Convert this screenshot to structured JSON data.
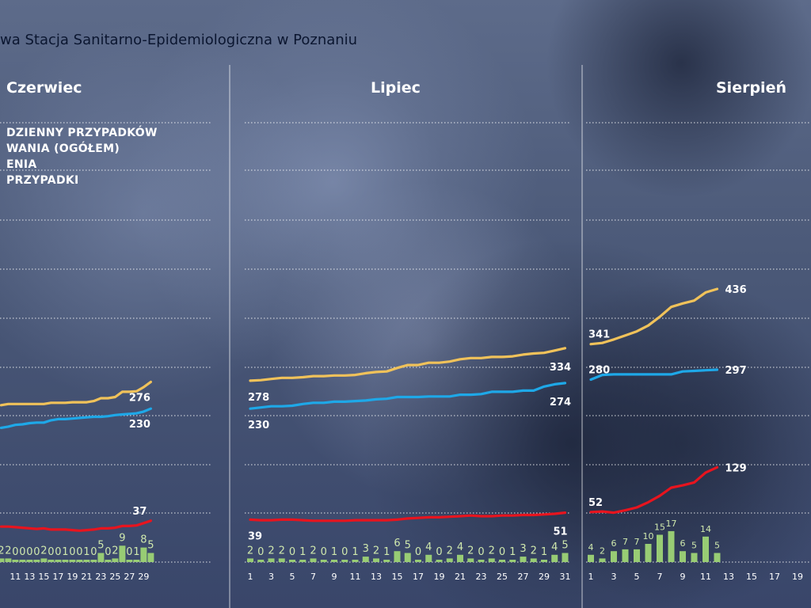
{
  "header": {
    "title": "wa Stacja Sanitarno-Epidemiologiczna w Poznaniu"
  },
  "legend": {
    "entries": [
      "DZIENNY PRZYPADKÓW",
      "WANIA (OGÓŁEM)",
      "ENIA",
      "PRZYPADKI"
    ]
  },
  "colors": {
    "total": "#f0c25a",
    "active": "#1ea8e8",
    "recovered": "#e8141e",
    "daily": "#98cc74",
    "bar_label": "#cfe8ad",
    "label": "#ffffff",
    "gridline": "#ffffff"
  },
  "chart_data": [
    {
      "type": "line",
      "title": "Czerwiec",
      "x_tick_labels": [
        "11",
        "13",
        "15",
        "17",
        "19",
        "21",
        "23",
        "25",
        "27",
        "29"
      ],
      "daily_new_cases": {
        "x": [
          9,
          10,
          11,
          12,
          13,
          14,
          15,
          16,
          17,
          18,
          19,
          20,
          21,
          22,
          23,
          24,
          25,
          26,
          27,
          28,
          29,
          30
        ],
        "values": [
          2,
          2,
          0,
          0,
          0,
          0,
          2,
          0,
          0,
          1,
          0,
          0,
          1,
          0,
          5,
          0,
          2,
          9,
          0,
          1,
          8,
          5
        ]
      },
      "series": [
        {
          "name": "",
          "color_key": "total",
          "x": [
            9,
            10,
            11,
            12,
            13,
            14,
            15,
            16,
            17,
            18,
            19,
            20,
            21,
            22,
            23,
            24,
            25,
            26,
            27,
            28,
            29,
            30
          ],
          "values": [
            236,
            238,
            238,
            238,
            238,
            238,
            238,
            240,
            240,
            240,
            241,
            241,
            241,
            243,
            248,
            248,
            250,
            259,
            259,
            260,
            267,
            276
          ],
          "end_label": "276"
        },
        {
          "name": "",
          "color_key": "active",
          "x": [
            9,
            10,
            11,
            12,
            13,
            14,
            15,
            16,
            17,
            18,
            19,
            20,
            21,
            22,
            23,
            24,
            25,
            26,
            27,
            28,
            29,
            30
          ],
          "values": [
            197,
            199,
            202,
            203,
            205,
            206,
            206,
            210,
            212,
            212,
            213,
            214,
            215,
            216,
            216,
            217,
            219,
            220,
            221,
            222,
            225,
            230
          ],
          "end_label": "230"
        },
        {
          "name": "",
          "color_key": "recovered",
          "x": [
            9,
            10,
            11,
            12,
            13,
            14,
            15,
            16,
            17,
            18,
            19,
            20,
            21,
            22,
            23,
            24,
            25,
            26,
            27,
            28,
            29,
            30
          ],
          "values": [
            27,
            27,
            26,
            25,
            24,
            23,
            24,
            22,
            22,
            22,
            21,
            20,
            21,
            22,
            24,
            24,
            25,
            28,
            28,
            29,
            33,
            37
          ],
          "end_label": "37"
        }
      ]
    },
    {
      "type": "line",
      "title": "Lipiec",
      "x_tick_labels": [
        "1",
        "3",
        "5",
        "7",
        "9",
        "11",
        "13",
        "15",
        "17",
        "19",
        "21",
        "23",
        "25",
        "27",
        "29",
        "31"
      ],
      "daily_new_cases": {
        "x": [
          1,
          2,
          3,
          4,
          5,
          6,
          7,
          8,
          9,
          10,
          11,
          12,
          13,
          14,
          15,
          16,
          17,
          18,
          19,
          20,
          21,
          22,
          23,
          24,
          25,
          26,
          27,
          28,
          29,
          30,
          31
        ],
        "values": [
          2,
          0,
          2,
          2,
          0,
          1,
          2,
          0,
          1,
          0,
          1,
          3,
          2,
          1,
          6,
          5,
          0,
          4,
          0,
          2,
          4,
          2,
          0,
          2,
          0,
          1,
          3,
          2,
          1,
          4,
          5
        ]
      },
      "series": [
        {
          "name": "",
          "color_key": "total",
          "x": [
            1,
            2,
            3,
            4,
            5,
            6,
            7,
            8,
            9,
            10,
            11,
            12,
            13,
            14,
            15,
            16,
            17,
            18,
            19,
            20,
            21,
            22,
            23,
            24,
            25,
            26,
            27,
            28,
            29,
            30,
            31
          ],
          "values": [
            278,
            279,
            281,
            283,
            283,
            284,
            286,
            286,
            287,
            287,
            288,
            291,
            293,
            294,
            300,
            305,
            305,
            309,
            309,
            311,
            315,
            317,
            317,
            319,
            319,
            320,
            323,
            325,
            326,
            330,
            334
          ],
          "end_label": "334",
          "start_label": "278"
        },
        {
          "name": "",
          "color_key": "active",
          "x": [
            1,
            2,
            3,
            4,
            5,
            6,
            7,
            8,
            9,
            10,
            11,
            12,
            13,
            14,
            15,
            16,
            17,
            18,
            19,
            20,
            21,
            22,
            23,
            24,
            25,
            26,
            27,
            28,
            29,
            30,
            31
          ],
          "values": [
            230,
            232,
            234,
            234,
            235,
            238,
            240,
            240,
            242,
            242,
            243,
            244,
            246,
            247,
            250,
            250,
            250,
            251,
            251,
            251,
            254,
            254,
            255,
            259,
            259,
            259,
            261,
            261,
            268,
            272,
            274
          ],
          "end_label": "274",
          "start_label": "230"
        },
        {
          "name": "",
          "color_key": "recovered",
          "x": [
            1,
            2,
            3,
            4,
            5,
            6,
            7,
            8,
            9,
            10,
            11,
            12,
            13,
            14,
            15,
            16,
            17,
            18,
            19,
            20,
            21,
            22,
            23,
            24,
            25,
            26,
            27,
            28,
            29,
            30,
            31
          ],
          "values": [
            39,
            38,
            38,
            39,
            39,
            38,
            37,
            37,
            37,
            37,
            38,
            38,
            38,
            38,
            39,
            41,
            42,
            43,
            43,
            44,
            45,
            46,
            45,
            45,
            46,
            46,
            47,
            47,
            48,
            49,
            51
          ],
          "end_label": "51",
          "start_label": "39"
        }
      ]
    },
    {
      "type": "line",
      "title": "Sierpień",
      "x_tick_labels": [
        "1",
        "3",
        "5",
        "7",
        "9",
        "11",
        "13",
        "15",
        "17",
        "19"
      ],
      "daily_new_cases": {
        "x": [
          1,
          2,
          3,
          4,
          5,
          6,
          7,
          8,
          9,
          10,
          11,
          12
        ],
        "values": [
          4,
          2,
          6,
          7,
          7,
          10,
          15,
          17,
          6,
          5,
          14,
          5
        ]
      },
      "series": [
        {
          "name": "",
          "color_key": "total",
          "x": [
            1,
            2,
            3,
            4,
            5,
            6,
            7,
            8,
            9,
            10,
            11,
            12
          ],
          "values": [
            341,
            343,
            349,
            356,
            363,
            373,
            388,
            405,
            411,
            416,
            430,
            436
          ],
          "end_label": "436",
          "start_label": "341"
        },
        {
          "name": "",
          "color_key": "active",
          "x": [
            1,
            2,
            3,
            4,
            5,
            6,
            7,
            8,
            9,
            10,
            11,
            12
          ],
          "values": [
            280,
            288,
            289,
            289,
            289,
            289,
            289,
            289,
            294,
            295,
            296,
            297
          ],
          "end_label": "297",
          "start_label": "280"
        },
        {
          "name": "",
          "color_key": "recovered",
          "x": [
            1,
            2,
            3,
            4,
            5,
            6,
            7,
            8,
            9,
            10,
            11,
            12
          ],
          "values": [
            52,
            53,
            51,
            55,
            60,
            69,
            80,
            94,
            98,
            103,
            120,
            129
          ],
          "end_label": "129",
          "start_label": "52"
        }
      ]
    }
  ]
}
